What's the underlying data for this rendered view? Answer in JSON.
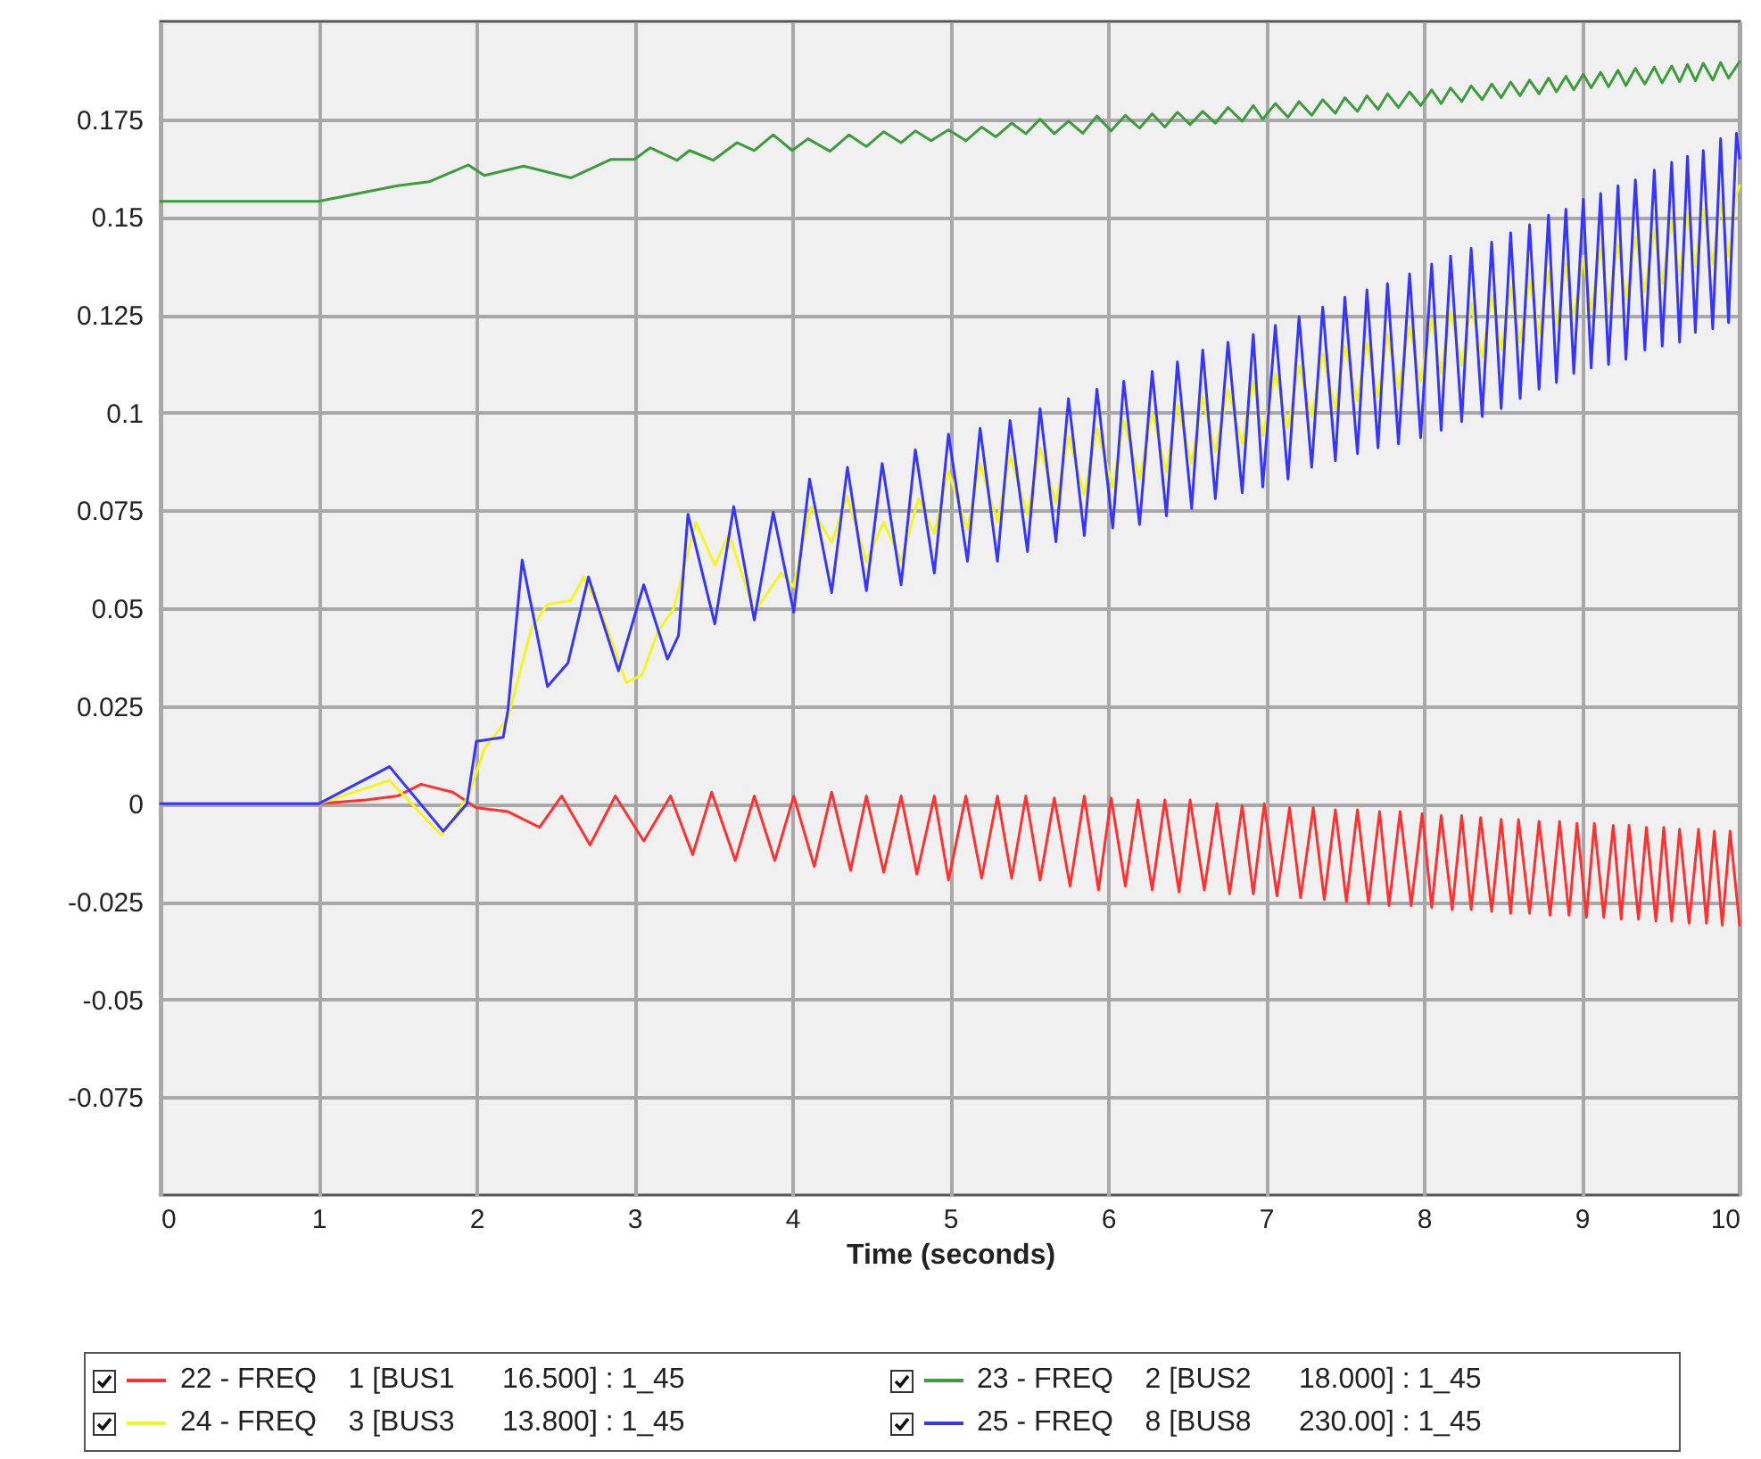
{
  "chart_data": {
    "type": "line",
    "xlabel": "Time (seconds)",
    "xlim": [
      0,
      10
    ],
    "xticks": [
      0,
      1,
      2,
      3,
      4,
      5,
      6,
      7,
      8,
      9,
      10
    ],
    "ylim": [
      -0.1,
      0.2
    ],
    "yticks": [
      -0.075,
      -0.05,
      -0.025,
      0,
      0.025,
      0.05,
      0.075,
      0.1,
      0.125,
      0.15,
      0.175
    ],
    "grid": true,
    "legend": "bottom",
    "line_style": "solid",
    "series": [
      {
        "name": "22 - FREQ    1 [BUS1      16.500] : 1_45",
        "color": "#ff3030",
        "x": [
          0,
          1,
          1.3,
          1.5,
          1.65,
          1.85,
          2.0,
          2.2,
          2.4,
          2.54,
          2.72,
          2.88,
          3.06,
          3.23,
          3.37,
          3.49,
          3.64,
          3.76,
          3.89,
          4.01,
          4.14,
          4.25,
          4.37,
          4.47,
          4.58,
          4.69,
          4.79,
          4.9,
          4.99,
          5.1,
          5.2,
          5.3,
          5.39,
          5.48,
          5.57,
          5.66,
          5.76,
          5.85,
          5.94,
          6.02,
          6.11,
          6.19,
          6.28,
          6.36,
          6.45,
          6.52,
          6.61,
          6.69,
          6.77,
          6.85,
          6.92,
          6.99,
          7.07,
          7.15,
          7.22,
          7.3,
          7.37,
          7.44,
          7.51,
          7.58,
          7.65,
          7.72,
          7.78,
          7.85,
          7.92,
          7.99,
          8.05,
          8.11,
          8.18,
          8.24,
          8.3,
          8.36,
          8.43,
          8.49,
          8.55,
          8.6,
          8.67,
          8.73,
          8.8,
          8.86,
          8.92,
          8.97,
          9.03,
          9.08,
          9.14,
          9.2,
          9.25,
          9.3,
          9.36,
          9.41,
          9.47,
          9.52,
          9.57,
          9.62,
          9.68,
          9.74,
          9.79,
          9.84,
          9.89,
          9.94,
          10
        ],
        "values": [
          0,
          0,
          0.001,
          0.002,
          0.005,
          0.003,
          -0.001,
          -0.002,
          -0.006,
          0.002,
          -0.0105,
          0.002,
          -0.0095,
          0.002,
          -0.013,
          0.003,
          -0.0145,
          0.002,
          -0.0145,
          0.002,
          -0.016,
          0.003,
          -0.017,
          0.002,
          -0.0175,
          0.002,
          -0.018,
          0.002,
          -0.0195,
          0.002,
          -0.019,
          0.002,
          -0.019,
          0.002,
          -0.0195,
          0.0015,
          -0.021,
          0.002,
          -0.022,
          0.0015,
          -0.021,
          0.001,
          -0.022,
          0.001,
          -0.0225,
          0.001,
          -0.022,
          0,
          -0.023,
          -0.0005,
          -0.023,
          0,
          -0.0235,
          -0.001,
          -0.024,
          -0.001,
          -0.0245,
          -0.0015,
          -0.025,
          -0.0015,
          -0.0255,
          -0.002,
          -0.026,
          -0.002,
          -0.026,
          -0.0025,
          -0.0265,
          -0.003,
          -0.027,
          -0.003,
          -0.027,
          -0.0035,
          -0.0275,
          -0.004,
          -0.028,
          -0.004,
          -0.028,
          -0.0045,
          -0.0285,
          -0.0045,
          -0.0285,
          -0.005,
          -0.029,
          -0.005,
          -0.029,
          -0.0055,
          -0.0295,
          -0.0055,
          -0.0295,
          -0.006,
          -0.03,
          -0.006,
          -0.03,
          -0.0065,
          -0.0305,
          -0.0065,
          -0.0305,
          -0.007,
          -0.031,
          -0.007,
          -0.031
        ]
      },
      {
        "name": "23 - FREQ    2 [BUS2      18.000] : 1_45",
        "color": "#3c9c3c",
        "x": [
          0,
          1,
          1.5,
          1.7,
          1.95,
          2.05,
          2.3,
          2.6,
          2.85,
          3.0,
          3.1,
          3.27,
          3.35,
          3.5,
          3.65,
          3.76,
          3.88,
          4.0,
          4.1,
          4.24,
          4.36,
          4.47,
          4.58,
          4.69,
          4.78,
          4.88,
          4.99,
          5.1,
          5.2,
          5.29,
          5.39,
          5.48,
          5.57,
          5.66,
          5.75,
          5.84,
          5.93,
          6.02,
          6.11,
          6.2,
          6.28,
          6.36,
          6.44,
          6.52,
          6.6,
          6.68,
          6.76,
          6.85,
          6.92,
          6.98,
          7.06,
          7.14,
          7.21,
          7.29,
          7.36,
          7.44,
          7.5,
          7.58,
          7.64,
          7.71,
          7.77,
          7.84,
          7.91,
          7.98,
          8.05,
          8.11,
          8.17,
          8.24,
          8.3,
          8.37,
          8.43,
          8.49,
          8.55,
          8.61,
          8.67,
          8.73,
          8.79,
          8.84,
          8.9,
          8.95,
          9.01,
          9.06,
          9.12,
          9.17,
          9.23,
          9.28,
          9.34,
          9.4,
          9.46,
          9.51,
          9.57,
          9.62,
          9.67,
          9.72,
          9.77,
          9.83,
          9.88,
          9.93,
          10
        ],
        "values": [
          0.154,
          0.154,
          0.158,
          0.159,
          0.1633,
          0.1606,
          0.163,
          0.16,
          0.1647,
          0.1647,
          0.1677,
          0.1645,
          0.167,
          0.1645,
          0.169,
          0.167,
          0.171,
          0.167,
          0.17,
          0.1668,
          0.171,
          0.168,
          0.1718,
          0.169,
          0.172,
          0.1695,
          0.1723,
          0.1695,
          0.173,
          0.1705,
          0.174,
          0.1713,
          0.175,
          0.1713,
          0.1745,
          0.1714,
          0.1758,
          0.172,
          0.176,
          0.1727,
          0.1764,
          0.173,
          0.1768,
          0.1736,
          0.177,
          0.174,
          0.178,
          0.1745,
          0.1785,
          0.175,
          0.179,
          0.1755,
          0.1795,
          0.176,
          0.18,
          0.1765,
          0.1805,
          0.177,
          0.181,
          0.1775,
          0.1815,
          0.178,
          0.182,
          0.1785,
          0.1825,
          0.179,
          0.183,
          0.1795,
          0.1835,
          0.18,
          0.184,
          0.1805,
          0.1845,
          0.181,
          0.185,
          0.1815,
          0.1855,
          0.182,
          0.186,
          0.1825,
          0.1865,
          0.183,
          0.187,
          0.1833,
          0.1875,
          0.1836,
          0.188,
          0.184,
          0.1883,
          0.1843,
          0.1886,
          0.1846,
          0.189,
          0.1848,
          0.1893,
          0.185,
          0.1895,
          0.1855,
          0.1897
        ]
      },
      {
        "name": "24 - FREQ    3 [BUS3      13.800] : 1_45",
        "color": "#f5f51e",
        "x": [
          0,
          1,
          1.45,
          1.78,
          1.95,
          2.05,
          2.2,
          2.35,
          2.45,
          2.6,
          2.68,
          2.8,
          2.95,
          3.05,
          3.15,
          3.25,
          3.39,
          3.51,
          3.6,
          3.76,
          3.93,
          4.01,
          4.12,
          4.25,
          4.35,
          4.47,
          4.58,
          4.69,
          4.8,
          4.9,
          4.99,
          5.11,
          5.19,
          5.3,
          5.38,
          5.49,
          5.57,
          5.67,
          5.75,
          5.85,
          5.93,
          6.03,
          6.1,
          6.2,
          6.28,
          6.37,
          6.44,
          6.53,
          6.6,
          6.68,
          6.76,
          6.85,
          6.92,
          6.98,
          7.06,
          7.14,
          7.21,
          7.29,
          7.36,
          7.44,
          7.5,
          7.58,
          7.64,
          7.71,
          7.77,
          7.84,
          7.91,
          7.98,
          8.05,
          8.11,
          8.17,
          8.24,
          8.3,
          8.37,
          8.43,
          8.49,
          8.55,
          8.61,
          8.67,
          8.73,
          8.79,
          8.84,
          8.9,
          8.95,
          9.01,
          9.06,
          9.12,
          9.17,
          9.23,
          9.28,
          9.34,
          9.4,
          9.46,
          9.51,
          9.57,
          9.62,
          9.67,
          9.72,
          9.77,
          9.83,
          9.88,
          9.93,
          9.98,
          10
        ],
        "values": [
          0,
          0,
          0.006,
          -0.008,
          0.002,
          0.014,
          0.022,
          0.045,
          0.051,
          0.052,
          0.058,
          0.048,
          0.031,
          0.033,
          0.044,
          0.05,
          0.072,
          0.061,
          0.069,
          0.049,
          0.059,
          0.0555,
          0.076,
          0.0668,
          0.0786,
          0.062,
          0.072,
          0.062,
          0.078,
          0.069,
          0.085,
          0.07,
          0.087,
          0.072,
          0.089,
          0.074,
          0.091,
          0.077,
          0.094,
          0.079,
          0.096,
          0.081,
          0.098,
          0.083,
          0.1,
          0.085,
          0.102,
          0.087,
          0.104,
          0.09,
          0.106,
          0.092,
          0.108,
          0.094,
          0.11,
          0.096,
          0.112,
          0.099,
          0.115,
          0.101,
          0.117,
          0.103,
          0.118,
          0.104,
          0.12,
          0.106,
          0.122,
          0.108,
          0.124,
          0.11,
          0.126,
          0.112,
          0.128,
          0.114,
          0.13,
          0.116,
          0.132,
          0.118,
          0.134,
          0.12,
          0.136,
          0.122,
          0.138,
          0.124,
          0.14,
          0.126,
          0.142,
          0.128,
          0.143,
          0.129,
          0.145,
          0.131,
          0.147,
          0.133,
          0.149,
          0.135,
          0.151,
          0.137,
          0.152,
          0.138,
          0.154,
          0.14,
          0.156,
          0.158
        ]
      },
      {
        "name": "25 - FREQ    8 [BUS8      230.00] : 1_45",
        "color": "#3535ff",
        "x": [
          0,
          1,
          1.45,
          1.79,
          1.94,
          2.0,
          2.17,
          2.2,
          2.29,
          2.45,
          2.58,
          2.71,
          2.9,
          3.06,
          3.21,
          3.28,
          3.34,
          3.51,
          3.63,
          3.76,
          3.88,
          4.01,
          4.11,
          4.25,
          4.35,
          4.47,
          4.57,
          4.69,
          4.78,
          4.9,
          4.99,
          5.11,
          5.19,
          5.3,
          5.38,
          5.49,
          5.57,
          5.67,
          5.75,
          5.85,
          5.93,
          6.03,
          6.1,
          6.2,
          6.28,
          6.37,
          6.44,
          6.53,
          6.6,
          6.68,
          6.76,
          6.85,
          6.92,
          6.98,
          7.06,
          7.14,
          7.21,
          7.29,
          7.36,
          7.44,
          7.5,
          7.58,
          7.64,
          7.71,
          7.77,
          7.84,
          7.91,
          7.98,
          8.05,
          8.11,
          8.17,
          8.24,
          8.3,
          8.37,
          8.43,
          8.49,
          8.55,
          8.61,
          8.67,
          8.73,
          8.79,
          8.84,
          8.9,
          8.95,
          9.01,
          9.06,
          9.12,
          9.17,
          9.23,
          9.28,
          9.34,
          9.4,
          9.46,
          9.51,
          9.57,
          9.62,
          9.67,
          9.72,
          9.77,
          9.83,
          9.88,
          9.93,
          9.98,
          10
        ],
        "values": [
          0,
          0,
          0.0095,
          -0.007,
          0,
          0.016,
          0.017,
          0.024,
          0.0623,
          0.03,
          0.036,
          0.058,
          0.034,
          0.056,
          0.037,
          0.043,
          0.074,
          0.046,
          0.076,
          0.047,
          0.0745,
          0.049,
          0.083,
          0.054,
          0.086,
          0.0545,
          0.087,
          0.056,
          0.0905,
          0.059,
          0.0945,
          0.062,
          0.096,
          0.062,
          0.098,
          0.0645,
          0.101,
          0.067,
          0.1036,
          0.0686,
          0.106,
          0.0705,
          0.108,
          0.0714,
          0.1105,
          0.0736,
          0.113,
          0.0755,
          0.116,
          0.078,
          0.118,
          0.0795,
          0.12,
          0.081,
          0.1223,
          0.083,
          0.1245,
          0.086,
          0.127,
          0.0877,
          0.1295,
          0.0895,
          0.1314,
          0.091,
          0.133,
          0.092,
          0.1355,
          0.0936,
          0.138,
          0.0955,
          0.14,
          0.0977,
          0.142,
          0.099,
          0.1436,
          0.101,
          0.146,
          0.1036,
          0.148,
          0.106,
          0.1505,
          0.1077,
          0.152,
          0.11,
          0.1545,
          0.1114,
          0.156,
          0.1123,
          0.158,
          0.1136,
          0.1595,
          0.116,
          0.162,
          0.117,
          0.164,
          0.118,
          0.1655,
          0.1205,
          0.167,
          0.1214,
          0.17,
          0.123,
          0.1714,
          0.165
        ]
      }
    ]
  }
}
